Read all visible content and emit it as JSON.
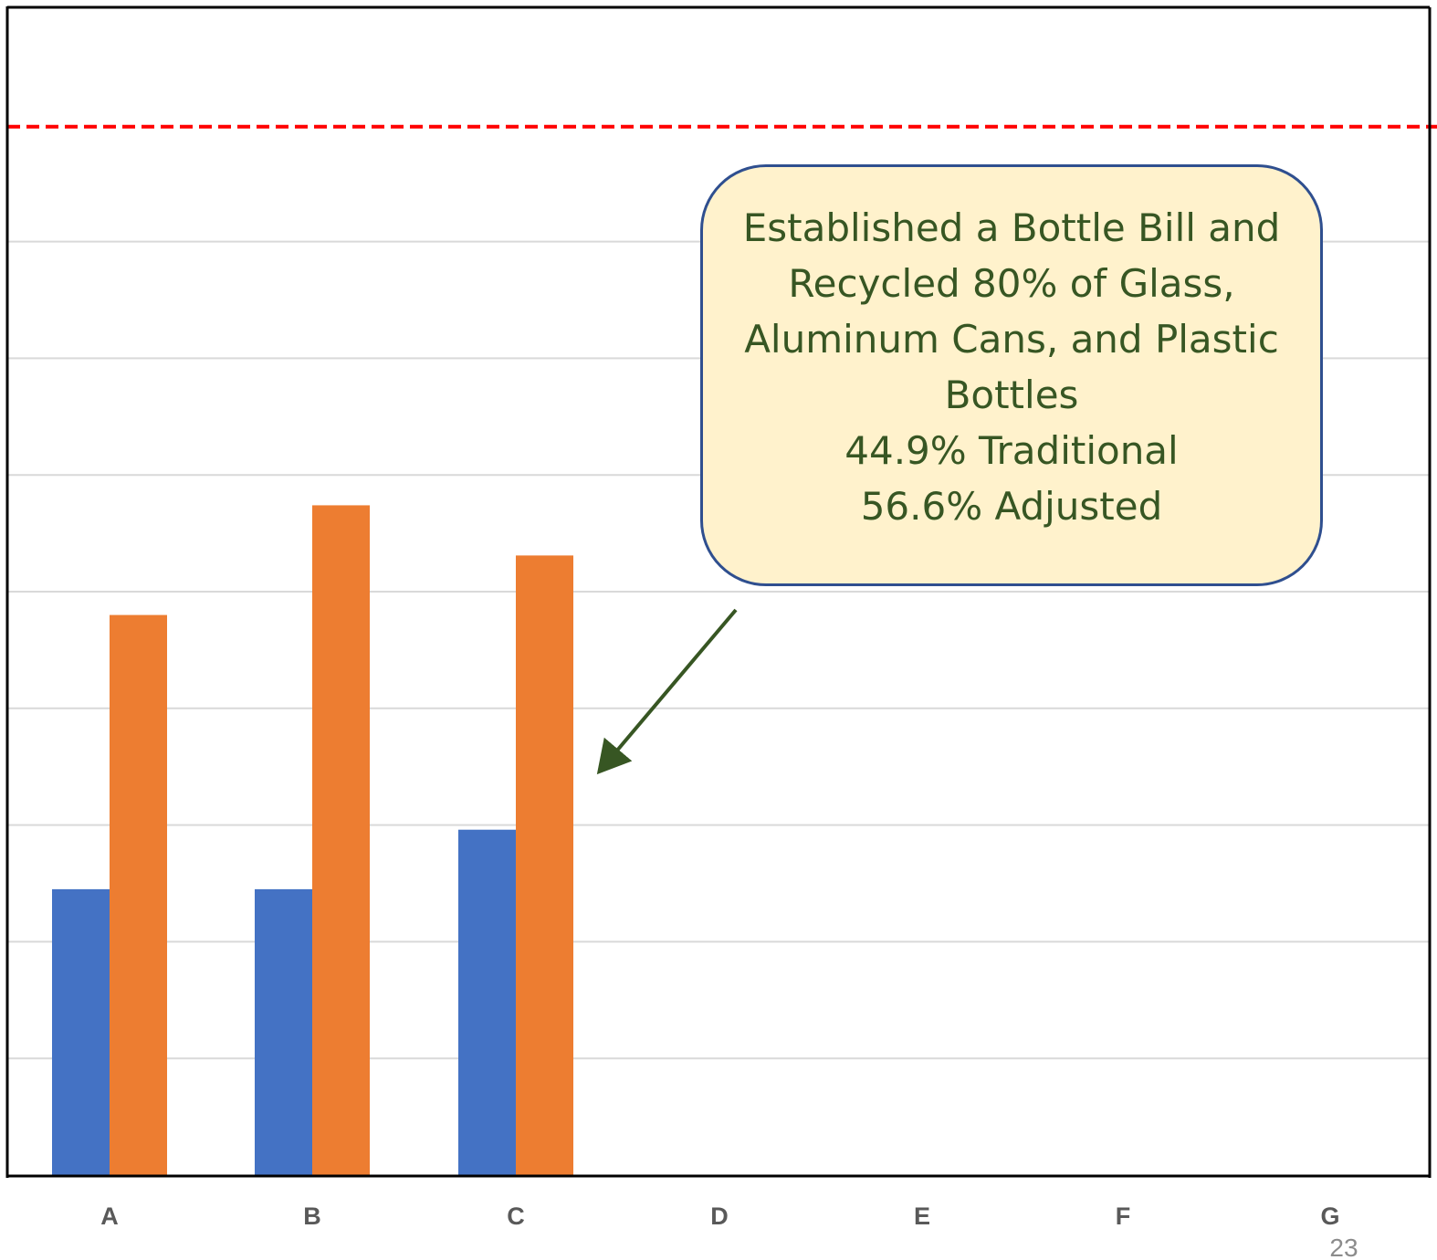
{
  "chart_data": {
    "type": "bar",
    "categories": [
      "A",
      "B",
      "C",
      "D",
      "E",
      "F",
      "G"
    ],
    "series": [
      {
        "values": [
          24.5,
          24.5,
          29.6,
          null,
          null,
          null,
          null
        ],
        "color": "#4472c4"
      },
      {
        "values": [
          48.0,
          57.4,
          53.1,
          null,
          null,
          null,
          null
        ],
        "color": "#ed7d31"
      }
    ],
    "ylim": [
      0,
      90
    ],
    "gridline_step": 10,
    "reference_line": {
      "value": 90,
      "color": "#ff0000",
      "style": "dashed"
    },
    "grid": true,
    "legend": "none"
  },
  "annotation": {
    "lines": [
      "Established a Bottle Bill and",
      "Recycled 80% of Glass,",
      "Aluminum Cans, and Plastic",
      "Bottles",
      "44.9% Traditional",
      "56.6% Adjusted"
    ],
    "background": "#fff2cc",
    "border_color": "#2f4f8f",
    "text_color": "#375623",
    "arrow_color": "#375623",
    "points_to": "C"
  },
  "page_number": "23"
}
